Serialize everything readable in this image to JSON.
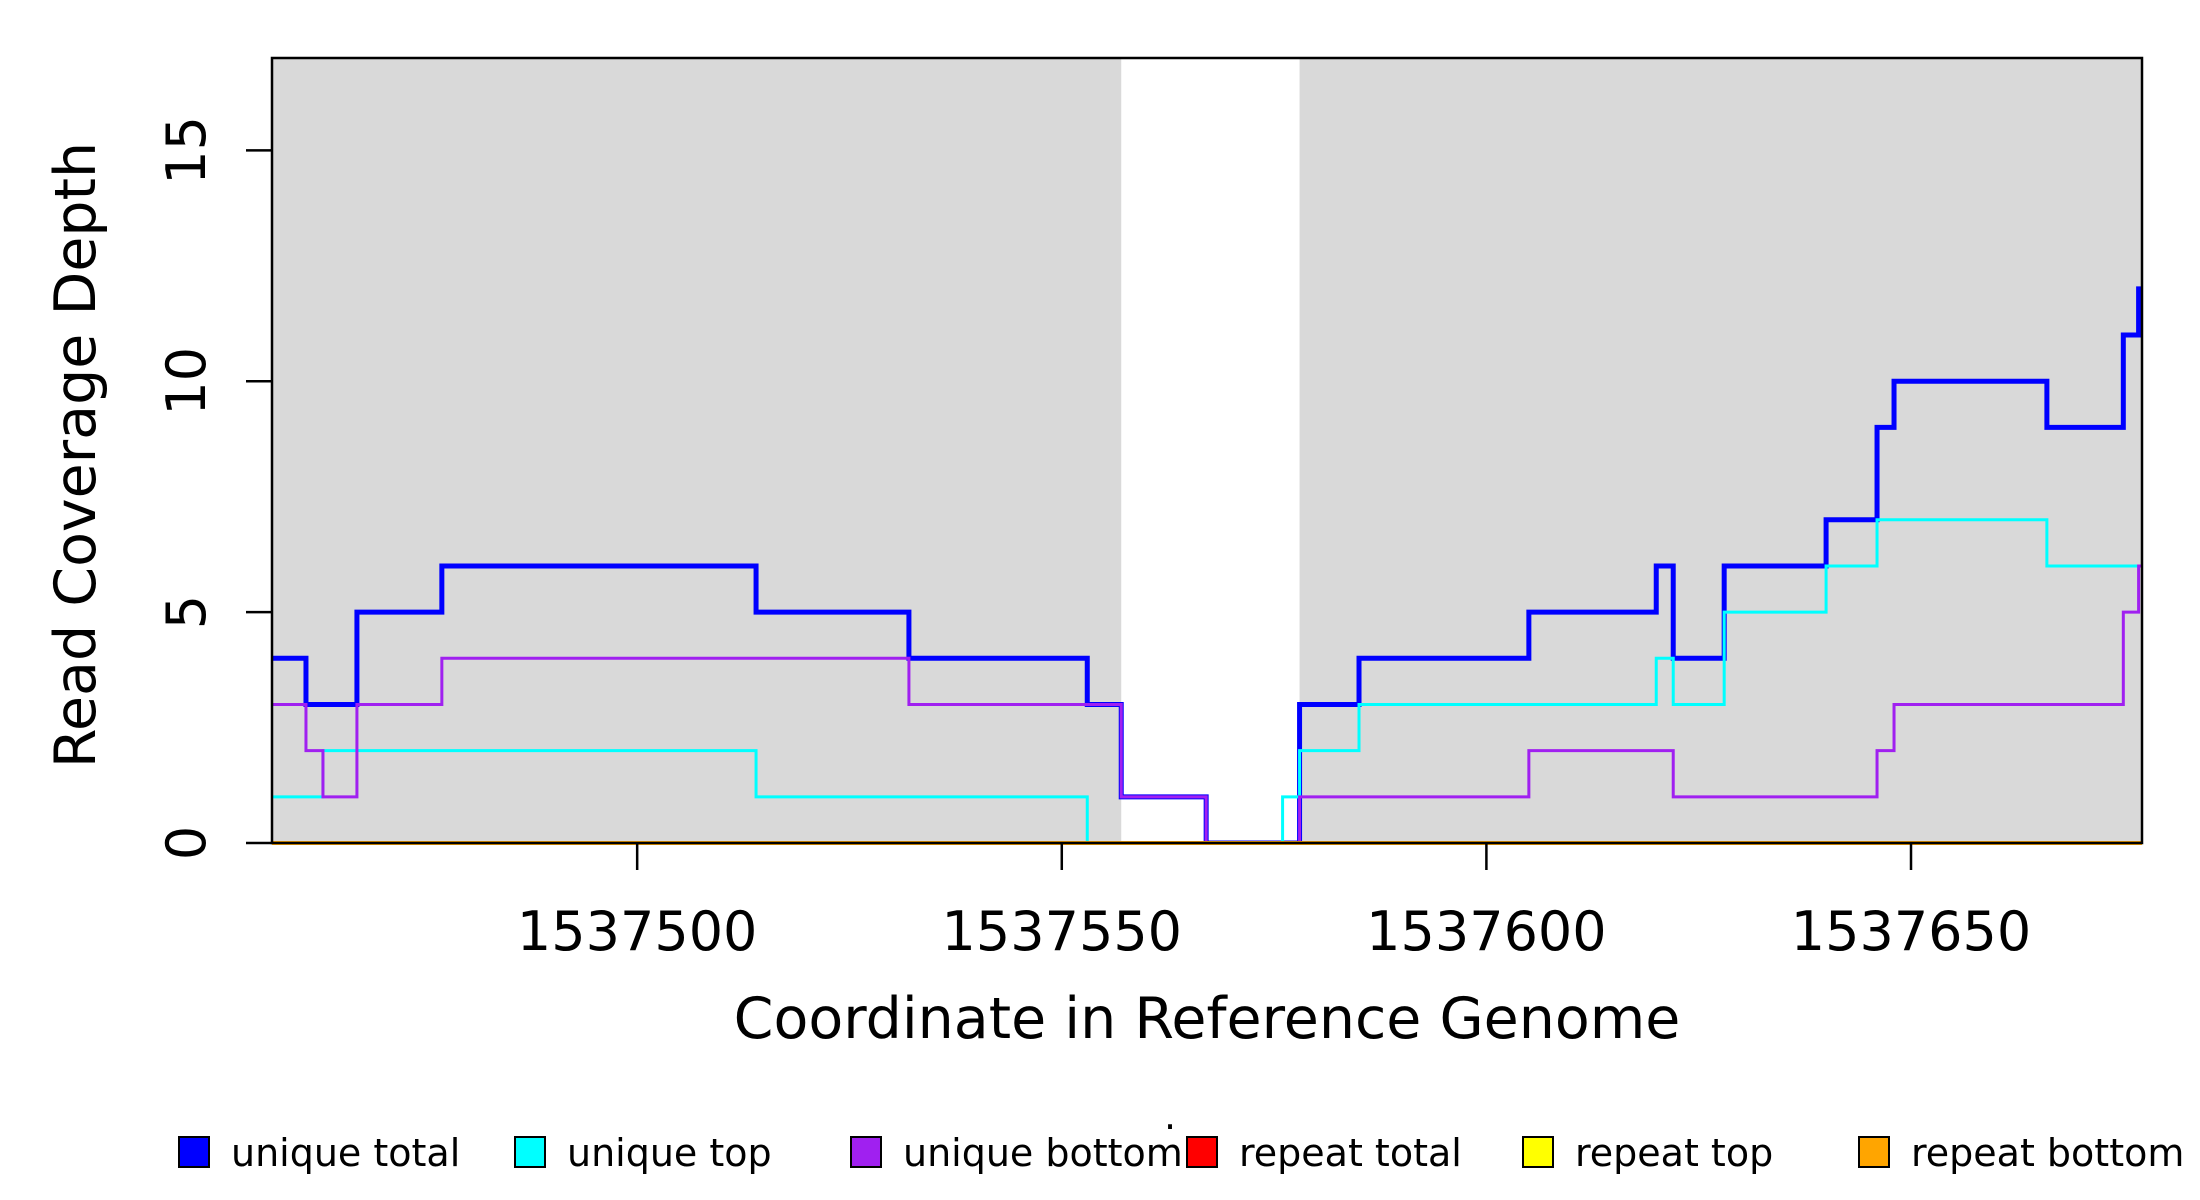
{
  "chart_data": {
    "type": "line",
    "subtype": "step",
    "title": "",
    "xlabel": "Coordinate in Reference Genome",
    "ylabel": "Read Coverage Depth",
    "xlim": [
      1537457,
      1537677.2
    ],
    "ylim": [
      0,
      17
    ],
    "grid": false,
    "x_ticks": [
      {
        "value": 1537500,
        "label": "1537500"
      },
      {
        "value": 1537550,
        "label": "1537550"
      },
      {
        "value": 1537600,
        "label": "1537600"
      },
      {
        "value": 1537650,
        "label": "1537650"
      }
    ],
    "y_ticks": [
      {
        "value": 0,
        "label": "0"
      },
      {
        "value": 5,
        "label": "5"
      },
      {
        "value": 10,
        "label": "10"
      },
      {
        "value": 15,
        "label": "15"
      }
    ],
    "shaded_regions": [
      {
        "from": 1537457,
        "to": 1537557,
        "color": "#d9d9d9"
      },
      {
        "from": 1537578,
        "to": 1537677.2,
        "color": "#d9d9d9"
      }
    ],
    "series": [
      {
        "name": "unique total",
        "color": "#0000ff",
        "width": 5,
        "steps": [
          [
            1537457,
            4
          ],
          [
            1537461,
            3
          ],
          [
            1537467,
            5
          ],
          [
            1537477,
            6
          ],
          [
            1537514,
            5
          ],
          [
            1537532,
            4
          ],
          [
            1537553,
            3
          ],
          [
            1537557,
            1
          ],
          [
            1537567,
            0
          ],
          [
            1537578,
            3
          ],
          [
            1537585,
            4
          ],
          [
            1537605,
            5
          ],
          [
            1537620,
            6
          ],
          [
            1537622,
            4
          ],
          [
            1537628,
            6
          ],
          [
            1537640,
            7
          ],
          [
            1537646,
            9
          ],
          [
            1537648,
            10
          ],
          [
            1537666,
            9
          ],
          [
            1537675,
            11
          ],
          [
            1537676.8,
            12
          ]
        ]
      },
      {
        "name": "unique top",
        "color": "#00ffff",
        "width": 3,
        "steps": [
          [
            1537457,
            1
          ],
          [
            1537463,
            2
          ],
          [
            1537514,
            1
          ],
          [
            1537553,
            0
          ],
          [
            1537576,
            1
          ],
          [
            1537578,
            2
          ],
          [
            1537585,
            3
          ],
          [
            1537620,
            4
          ],
          [
            1537622,
            3
          ],
          [
            1537628,
            5
          ],
          [
            1537640,
            6
          ],
          [
            1537646,
            7
          ],
          [
            1537666,
            6
          ]
        ]
      },
      {
        "name": "unique bottom",
        "color": "#a020f0",
        "width": 3,
        "steps": [
          [
            1537457,
            3
          ],
          [
            1537461,
            2
          ],
          [
            1537463,
            1
          ],
          [
            1537467,
            3
          ],
          [
            1537477,
            4
          ],
          [
            1537532,
            3
          ],
          [
            1537557,
            1
          ],
          [
            1537567,
            0
          ],
          [
            1537578,
            1
          ],
          [
            1537605,
            2
          ],
          [
            1537622,
            1
          ],
          [
            1537646,
            2
          ],
          [
            1537648,
            3
          ],
          [
            1537675,
            5
          ],
          [
            1537676.8,
            6
          ]
        ]
      },
      {
        "name": "repeat total",
        "color": "#ff0000",
        "width": 3,
        "steps": [
          [
            1537457,
            0
          ]
        ]
      },
      {
        "name": "repeat top",
        "color": "#ffff00",
        "width": 3,
        "steps": [
          [
            1537457,
            0
          ]
        ]
      },
      {
        "name": "repeat bottom",
        "color": "#ffa500",
        "width": 4,
        "steps": [
          [
            1537457,
            0
          ]
        ]
      }
    ],
    "legend": {
      "position": "bottom",
      "entries": [
        {
          "label": "unique total",
          "color": "#0000ff"
        },
        {
          "label": "unique top",
          "color": "#00ffff"
        },
        {
          "label": "unique bottom",
          "color": "#a020f0"
        },
        {
          "label": "repeat total",
          "color": "#ff0000"
        },
        {
          "label": "repeat top",
          "color": "#ffff00"
        },
        {
          "label": "repeat bottom",
          "color": "#ffa500"
        }
      ],
      "stray_dot": "·"
    },
    "axis_color": "#000000",
    "box_border": true
  }
}
